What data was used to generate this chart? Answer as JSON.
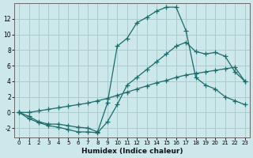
{
  "xlabel": "Humidex (Indice chaleur)",
  "background_color": "#cce8ea",
  "grid_color": "#aacccc",
  "line_color": "#1a6b6b",
  "xlim": [
    -0.5,
    23.5
  ],
  "ylim": [
    -3.2,
    14.0
  ],
  "xticks": [
    0,
    1,
    2,
    3,
    4,
    5,
    6,
    7,
    8,
    9,
    10,
    11,
    12,
    13,
    14,
    15,
    16,
    17,
    18,
    19,
    20,
    21,
    22,
    23
  ],
  "yticks": [
    -2,
    0,
    2,
    4,
    6,
    8,
    10,
    12
  ],
  "line_top_x": [
    0,
    1,
    2,
    3,
    4,
    5,
    6,
    7,
    8,
    9,
    10,
    11,
    12,
    13,
    14,
    15,
    16,
    17,
    18,
    19,
    20,
    21,
    22,
    23
  ],
  "line_top_y": [
    0,
    -0.5,
    -1.2,
    -1.5,
    -1.5,
    -1.7,
    -1.9,
    -2.0,
    -2.5,
    1.2,
    8.5,
    9.5,
    11.5,
    12.2,
    13.0,
    13.5,
    13.5,
    10.5,
    4.5,
    3.5,
    3.0,
    2.0,
    1.5,
    1.0
  ],
  "line_mid_x": [
    0,
    1,
    2,
    3,
    4,
    5,
    6,
    7,
    8,
    9,
    10,
    11,
    12,
    13,
    14,
    15,
    16,
    17,
    18,
    19,
    20,
    21,
    22,
    23
  ],
  "line_mid_y": [
    0,
    -0.8,
    -1.3,
    -1.7,
    -1.9,
    -2.2,
    -2.5,
    -2.5,
    -2.6,
    -1.2,
    1.0,
    3.5,
    4.5,
    5.5,
    6.5,
    7.5,
    8.5,
    9.0,
    7.8,
    7.5,
    7.7,
    7.2,
    5.2,
    4.0
  ],
  "line_low_x": [
    0,
    1,
    2,
    3,
    4,
    5,
    6,
    7,
    8,
    9,
    10,
    11,
    12,
    13,
    14,
    15,
    16,
    17,
    18,
    19,
    20,
    21,
    22,
    23
  ],
  "line_low_y": [
    0,
    0.0,
    0.2,
    0.4,
    0.6,
    0.8,
    1.0,
    1.2,
    1.5,
    1.8,
    2.2,
    2.6,
    3.0,
    3.4,
    3.8,
    4.1,
    4.5,
    4.8,
    5.0,
    5.2,
    5.4,
    5.6,
    5.8,
    4.0
  ]
}
